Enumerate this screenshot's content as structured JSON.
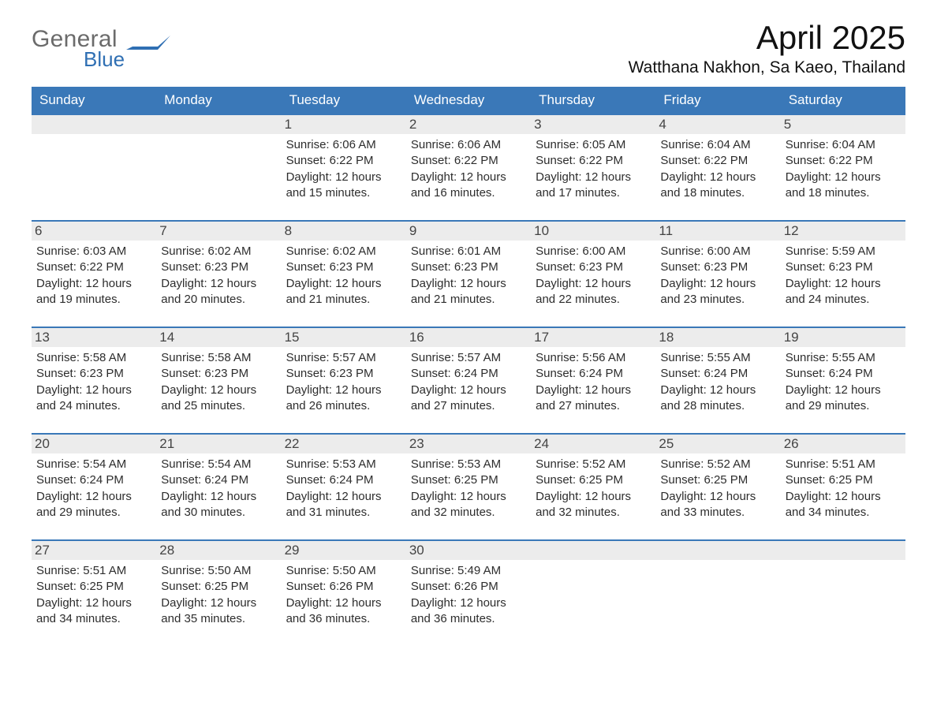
{
  "colors": {
    "header_blue": "#3a78b8",
    "daynum_bg": "#ececec",
    "text": "#222222",
    "logo_gray": "#6b6b6b",
    "logo_blue": "#2f6fb3",
    "background": "#ffffff"
  },
  "logo": {
    "line1": "General",
    "line2": "Blue"
  },
  "title": "April 2025",
  "location": "Watthana Nakhon, Sa Kaeo, Thailand",
  "day_of_week_labels": [
    "Sunday",
    "Monday",
    "Tuesday",
    "Wednesday",
    "Thursday",
    "Friday",
    "Saturday"
  ],
  "weeks": [
    [
      null,
      null,
      {
        "day": "1",
        "sunrise": "Sunrise: 6:06 AM",
        "sunset": "Sunset: 6:22 PM",
        "daylight1": "Daylight: 12 hours",
        "daylight2": "and 15 minutes."
      },
      {
        "day": "2",
        "sunrise": "Sunrise: 6:06 AM",
        "sunset": "Sunset: 6:22 PM",
        "daylight1": "Daylight: 12 hours",
        "daylight2": "and 16 minutes."
      },
      {
        "day": "3",
        "sunrise": "Sunrise: 6:05 AM",
        "sunset": "Sunset: 6:22 PM",
        "daylight1": "Daylight: 12 hours",
        "daylight2": "and 17 minutes."
      },
      {
        "day": "4",
        "sunrise": "Sunrise: 6:04 AM",
        "sunset": "Sunset: 6:22 PM",
        "daylight1": "Daylight: 12 hours",
        "daylight2": "and 18 minutes."
      },
      {
        "day": "5",
        "sunrise": "Sunrise: 6:04 AM",
        "sunset": "Sunset: 6:22 PM",
        "daylight1": "Daylight: 12 hours",
        "daylight2": "and 18 minutes."
      }
    ],
    [
      {
        "day": "6",
        "sunrise": "Sunrise: 6:03 AM",
        "sunset": "Sunset: 6:22 PM",
        "daylight1": "Daylight: 12 hours",
        "daylight2": "and 19 minutes."
      },
      {
        "day": "7",
        "sunrise": "Sunrise: 6:02 AM",
        "sunset": "Sunset: 6:23 PM",
        "daylight1": "Daylight: 12 hours",
        "daylight2": "and 20 minutes."
      },
      {
        "day": "8",
        "sunrise": "Sunrise: 6:02 AM",
        "sunset": "Sunset: 6:23 PM",
        "daylight1": "Daylight: 12 hours",
        "daylight2": "and 21 minutes."
      },
      {
        "day": "9",
        "sunrise": "Sunrise: 6:01 AM",
        "sunset": "Sunset: 6:23 PM",
        "daylight1": "Daylight: 12 hours",
        "daylight2": "and 21 minutes."
      },
      {
        "day": "10",
        "sunrise": "Sunrise: 6:00 AM",
        "sunset": "Sunset: 6:23 PM",
        "daylight1": "Daylight: 12 hours",
        "daylight2": "and 22 minutes."
      },
      {
        "day": "11",
        "sunrise": "Sunrise: 6:00 AM",
        "sunset": "Sunset: 6:23 PM",
        "daylight1": "Daylight: 12 hours",
        "daylight2": "and 23 minutes."
      },
      {
        "day": "12",
        "sunrise": "Sunrise: 5:59 AM",
        "sunset": "Sunset: 6:23 PM",
        "daylight1": "Daylight: 12 hours",
        "daylight2": "and 24 minutes."
      }
    ],
    [
      {
        "day": "13",
        "sunrise": "Sunrise: 5:58 AM",
        "sunset": "Sunset: 6:23 PM",
        "daylight1": "Daylight: 12 hours",
        "daylight2": "and 24 minutes."
      },
      {
        "day": "14",
        "sunrise": "Sunrise: 5:58 AM",
        "sunset": "Sunset: 6:23 PM",
        "daylight1": "Daylight: 12 hours",
        "daylight2": "and 25 minutes."
      },
      {
        "day": "15",
        "sunrise": "Sunrise: 5:57 AM",
        "sunset": "Sunset: 6:23 PM",
        "daylight1": "Daylight: 12 hours",
        "daylight2": "and 26 minutes."
      },
      {
        "day": "16",
        "sunrise": "Sunrise: 5:57 AM",
        "sunset": "Sunset: 6:24 PM",
        "daylight1": "Daylight: 12 hours",
        "daylight2": "and 27 minutes."
      },
      {
        "day": "17",
        "sunrise": "Sunrise: 5:56 AM",
        "sunset": "Sunset: 6:24 PM",
        "daylight1": "Daylight: 12 hours",
        "daylight2": "and 27 minutes."
      },
      {
        "day": "18",
        "sunrise": "Sunrise: 5:55 AM",
        "sunset": "Sunset: 6:24 PM",
        "daylight1": "Daylight: 12 hours",
        "daylight2": "and 28 minutes."
      },
      {
        "day": "19",
        "sunrise": "Sunrise: 5:55 AM",
        "sunset": "Sunset: 6:24 PM",
        "daylight1": "Daylight: 12 hours",
        "daylight2": "and 29 minutes."
      }
    ],
    [
      {
        "day": "20",
        "sunrise": "Sunrise: 5:54 AM",
        "sunset": "Sunset: 6:24 PM",
        "daylight1": "Daylight: 12 hours",
        "daylight2": "and 29 minutes."
      },
      {
        "day": "21",
        "sunrise": "Sunrise: 5:54 AM",
        "sunset": "Sunset: 6:24 PM",
        "daylight1": "Daylight: 12 hours",
        "daylight2": "and 30 minutes."
      },
      {
        "day": "22",
        "sunrise": "Sunrise: 5:53 AM",
        "sunset": "Sunset: 6:24 PM",
        "daylight1": "Daylight: 12 hours",
        "daylight2": "and 31 minutes."
      },
      {
        "day": "23",
        "sunrise": "Sunrise: 5:53 AM",
        "sunset": "Sunset: 6:25 PM",
        "daylight1": "Daylight: 12 hours",
        "daylight2": "and 32 minutes."
      },
      {
        "day": "24",
        "sunrise": "Sunrise: 5:52 AM",
        "sunset": "Sunset: 6:25 PM",
        "daylight1": "Daylight: 12 hours",
        "daylight2": "and 32 minutes."
      },
      {
        "day": "25",
        "sunrise": "Sunrise: 5:52 AM",
        "sunset": "Sunset: 6:25 PM",
        "daylight1": "Daylight: 12 hours",
        "daylight2": "and 33 minutes."
      },
      {
        "day": "26",
        "sunrise": "Sunrise: 5:51 AM",
        "sunset": "Sunset: 6:25 PM",
        "daylight1": "Daylight: 12 hours",
        "daylight2": "and 34 minutes."
      }
    ],
    [
      {
        "day": "27",
        "sunrise": "Sunrise: 5:51 AM",
        "sunset": "Sunset: 6:25 PM",
        "daylight1": "Daylight: 12 hours",
        "daylight2": "and 34 minutes."
      },
      {
        "day": "28",
        "sunrise": "Sunrise: 5:50 AM",
        "sunset": "Sunset: 6:25 PM",
        "daylight1": "Daylight: 12 hours",
        "daylight2": "and 35 minutes."
      },
      {
        "day": "29",
        "sunrise": "Sunrise: 5:50 AM",
        "sunset": "Sunset: 6:26 PM",
        "daylight1": "Daylight: 12 hours",
        "daylight2": "and 36 minutes."
      },
      {
        "day": "30",
        "sunrise": "Sunrise: 5:49 AM",
        "sunset": "Sunset: 6:26 PM",
        "daylight1": "Daylight: 12 hours",
        "daylight2": "and 36 minutes."
      },
      null,
      null,
      null
    ]
  ]
}
